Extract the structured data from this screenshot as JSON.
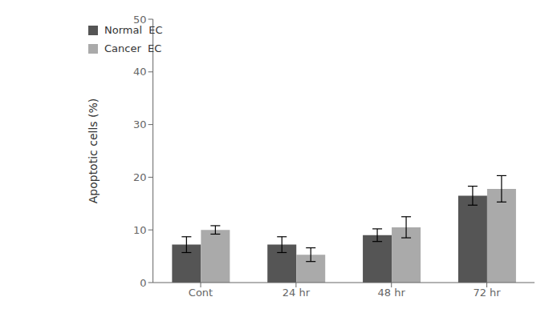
{
  "chart_data": {
    "type": "bar",
    "categories": [
      "Cont",
      "24 hr",
      "48 hr",
      "72 hr"
    ],
    "series": [
      {
        "name": "Normal  EC",
        "color": "#555555",
        "values": [
          7.2,
          7.2,
          9.0,
          16.5
        ],
        "errors": [
          1.5,
          1.5,
          1.2,
          1.8
        ]
      },
      {
        "name": "Cancer  EC",
        "color": "#aaaaaa",
        "values": [
          10.0,
          5.3,
          10.5,
          17.8
        ],
        "errors": [
          0.8,
          1.3,
          2.0,
          2.5
        ]
      }
    ],
    "ylabel": "Apoptotic cells (%)",
    "ylim": [
      0,
      50
    ],
    "yticks": [
      0,
      10,
      20,
      30,
      40,
      50
    ],
    "grid": false,
    "legend": "upper left"
  }
}
